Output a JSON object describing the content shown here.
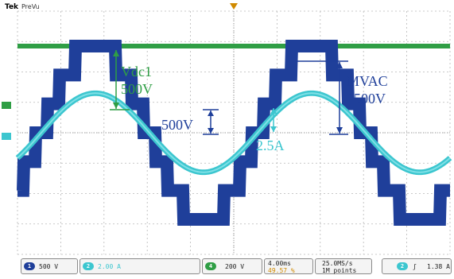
{
  "header": {
    "brand": "Tek",
    "mode": "PreVu"
  },
  "annotations": {
    "vdc1_line1": "Vdc1",
    "vdc1_line2": "500V",
    "step_label": "500V",
    "current_label": "2.5A",
    "mvac_line1": "MVAC",
    "mvac_line2": "1500V"
  },
  "channels": [
    {
      "id": "1",
      "scale": "500 V",
      "color": "#1f3f9a"
    },
    {
      "id": "2",
      "scale": "2.00 A",
      "color": "#3cc6cf"
    },
    {
      "id": "4",
      "scale": "200 V",
      "color": "#2f9e45"
    }
  ],
  "status": {
    "timebase": "4.00ms",
    "trigger_pos": "49.57 %",
    "sample_rate": "25.0MS/s",
    "record_length": "1M points",
    "trig_source": "2",
    "trig_slope": "ʃ",
    "trig_level": "1.38 A"
  },
  "colors": {
    "vdc": "#2f9e45",
    "multilevel": "#1f3f9a",
    "current": "#3cc6cf",
    "annotation_green": "#2f9e45",
    "annotation_blue": "#1f3f9a",
    "annotation_cyan": "#3cc6cf"
  },
  "chart_data": {
    "type": "line",
    "title": "",
    "xlabel": "",
    "ylabel": "",
    "timebase_per_div": "4.00ms",
    "x_divisions": 10,
    "y_divisions": 8,
    "grid": true,
    "series": [
      {
        "name": "Vdc1",
        "channel": "4",
        "shape": "dc",
        "level_div": 2.85
      },
      {
        "name": "MVAC",
        "channel": "1",
        "shape": "staircase",
        "levels": 7,
        "step_div": 0.95,
        "period_div": 5.0,
        "phase_div": 0.55
      },
      {
        "name": "current",
        "channel": "2",
        "shape": "sine",
        "amplitude_div": 1.3,
        "period_div": 5.0,
        "phase_div": 0.55,
        "band_div": 0.18
      }
    ]
  }
}
